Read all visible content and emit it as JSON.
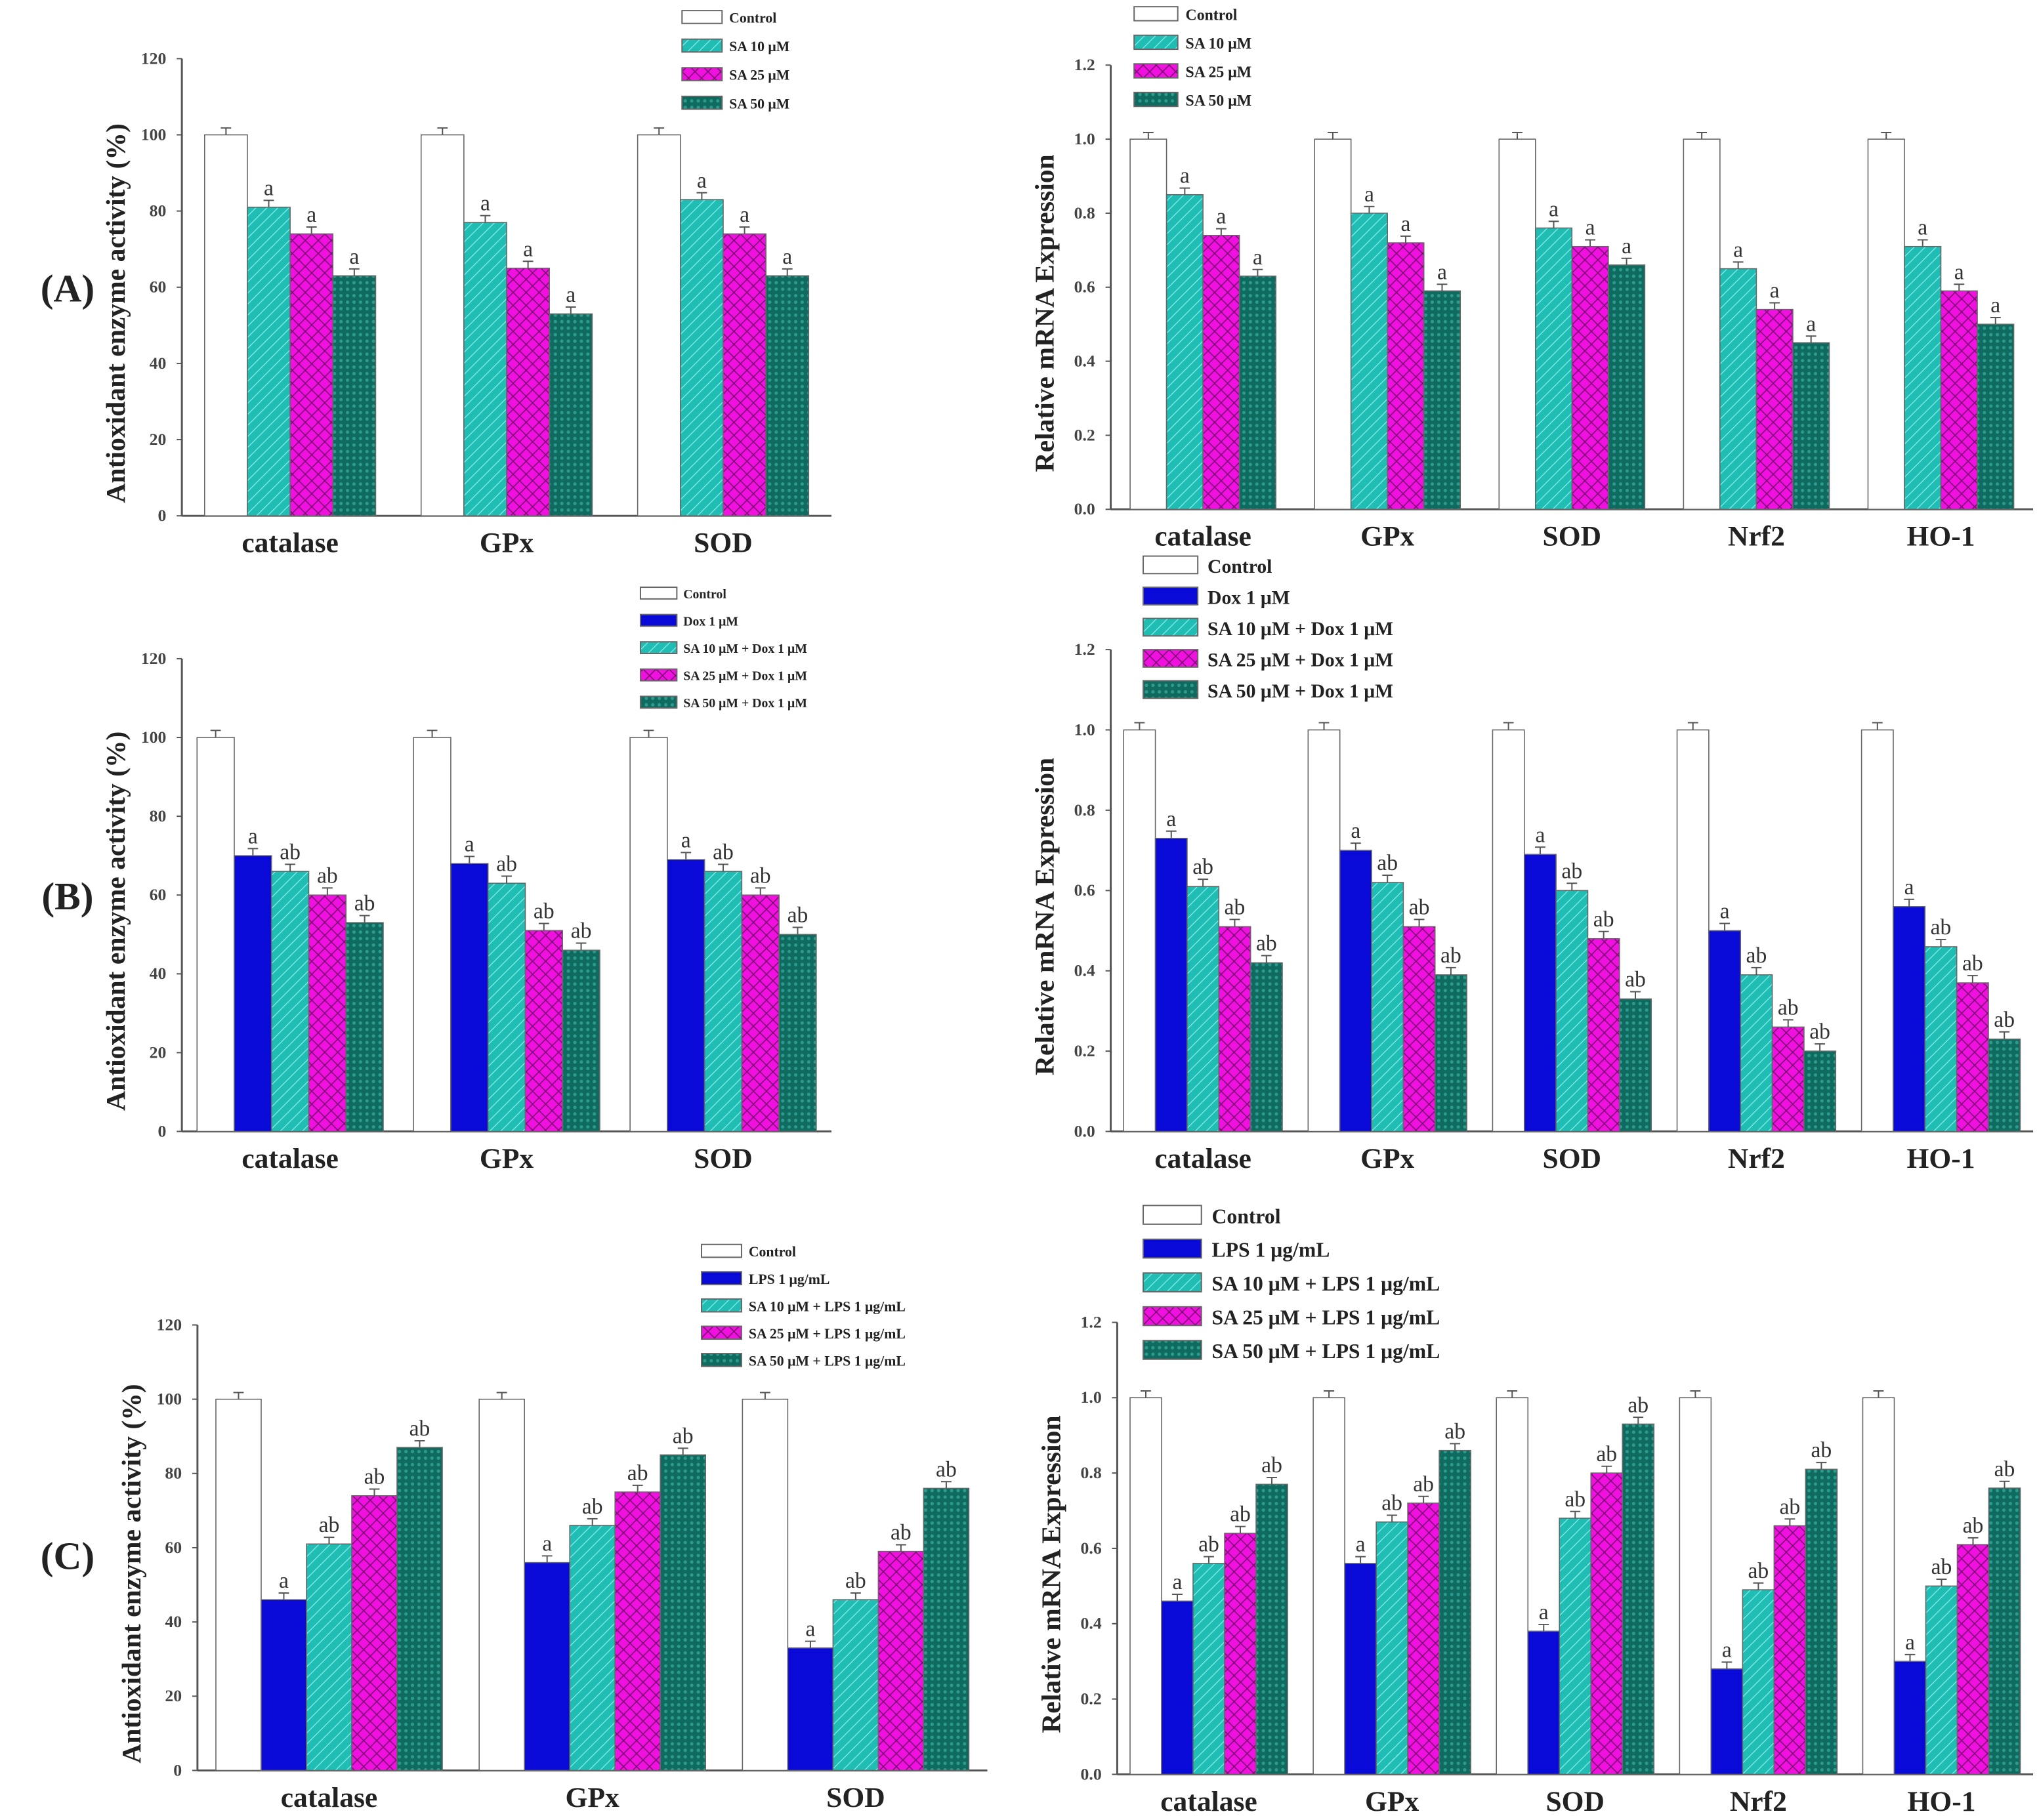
{
  "colors": {
    "control": "#ffffff",
    "dox_lps": "#0a0ad8",
    "sa10": "#1fbdb4",
    "sa25": "#f010e0",
    "sa50": "#0f6b60",
    "axis": "#555555"
  },
  "chart_data": [
    {
      "id": "A-left",
      "panel_label": "(A)",
      "type": "bar",
      "ylabel": "Antioxidant enzyme activity (%)",
      "ylim": [
        0,
        120
      ],
      "yticks": [
        "0",
        "20",
        "40",
        "60",
        "80",
        "100",
        "120"
      ],
      "categories": [
        "catalase",
        "GPx",
        "SOD"
      ],
      "series": [
        {
          "name": "Control",
          "style": "control",
          "values": [
            100,
            100,
            100
          ],
          "sig": [
            "",
            "",
            ""
          ]
        },
        {
          "name": "SA 10 μM",
          "style": "sa10",
          "values": [
            81,
            77,
            83
          ],
          "sig": [
            "a",
            "a",
            "a"
          ]
        },
        {
          "name": "SA 25 μM",
          "style": "sa25",
          "values": [
            74,
            65,
            74
          ],
          "sig": [
            "a",
            "a",
            "a"
          ]
        },
        {
          "name": "SA 50 μM",
          "style": "sa50",
          "values": [
            63,
            53,
            63
          ],
          "sig": [
            "a",
            "a",
            "a"
          ]
        }
      ]
    },
    {
      "id": "A-right",
      "type": "bar",
      "ylabel": "Relative mRNA Expression",
      "ylim": [
        0,
        1.2
      ],
      "yticks": [
        "0.0",
        "0.2",
        "0.4",
        "0.6",
        "0.8",
        "1.0",
        "1.2"
      ],
      "categories": [
        "catalase",
        "GPx",
        "SOD",
        "Nrf2",
        "HO-1"
      ],
      "series": [
        {
          "name": "Control",
          "style": "control",
          "values": [
            1,
            1,
            1,
            1,
            1
          ],
          "sig": [
            "",
            "",
            "",
            "",
            ""
          ]
        },
        {
          "name": "SA 10 μM",
          "style": "sa10",
          "values": [
            0.85,
            0.8,
            0.76,
            0.65,
            0.71
          ],
          "sig": [
            "a",
            "a",
            "a",
            "a",
            "a"
          ]
        },
        {
          "name": "SA 25 μM",
          "style": "sa25",
          "values": [
            0.74,
            0.72,
            0.71,
            0.54,
            0.59
          ],
          "sig": [
            "a",
            "a",
            "a",
            "a",
            "a"
          ]
        },
        {
          "name": "SA 50 μM",
          "style": "sa50",
          "values": [
            0.63,
            0.59,
            0.66,
            0.45,
            0.5
          ],
          "sig": [
            "a",
            "a",
            "a",
            "a",
            "a"
          ]
        }
      ]
    },
    {
      "id": "B-left",
      "panel_label": "(B)",
      "type": "bar",
      "ylabel": "Antioxidant enzyme activity (%)",
      "ylim": [
        0,
        120
      ],
      "yticks": [
        "0",
        "20",
        "40",
        "60",
        "80",
        "100",
        "120"
      ],
      "categories": [
        "catalase",
        "GPx",
        "SOD"
      ],
      "series": [
        {
          "name": "Control",
          "style": "control",
          "values": [
            100,
            100,
            100
          ],
          "sig": [
            "",
            "",
            ""
          ]
        },
        {
          "name": "Dox 1 μM",
          "style": "dox_lps",
          "values": [
            70,
            68,
            69
          ],
          "sig": [
            "a",
            "a",
            "a"
          ]
        },
        {
          "name": "SA 10 μM + Dox 1 μM",
          "style": "sa10",
          "values": [
            66,
            63,
            66
          ],
          "sig": [
            "ab",
            "ab",
            "ab"
          ]
        },
        {
          "name": "SA 25 μM + Dox 1 μM",
          "style": "sa25",
          "values": [
            60,
            51,
            60
          ],
          "sig": [
            "ab",
            "ab",
            "ab"
          ]
        },
        {
          "name": "SA 50 μM + Dox 1 μM",
          "style": "sa50",
          "values": [
            53,
            46,
            50
          ],
          "sig": [
            "ab",
            "ab",
            "ab"
          ]
        }
      ]
    },
    {
      "id": "B-right",
      "type": "bar",
      "ylabel": "Relative mRNA Expression",
      "ylim": [
        0,
        1.2
      ],
      "yticks": [
        "0.0",
        "0.2",
        "0.4",
        "0.6",
        "0.8",
        "1.0",
        "1.2"
      ],
      "categories": [
        "catalase",
        "GPx",
        "SOD",
        "Nrf2",
        "HO-1"
      ],
      "series": [
        {
          "name": "Control",
          "style": "control",
          "values": [
            1,
            1,
            1,
            1,
            1
          ],
          "sig": [
            "",
            "",
            "",
            "",
            ""
          ]
        },
        {
          "name": "Dox 1 μM",
          "style": "dox_lps",
          "values": [
            0.73,
            0.7,
            0.69,
            0.5,
            0.56
          ],
          "sig": [
            "a",
            "a",
            "a",
            "a",
            "a"
          ]
        },
        {
          "name": "SA 10 μM + Dox 1 μM",
          "style": "sa10",
          "values": [
            0.61,
            0.62,
            0.6,
            0.39,
            0.46
          ],
          "sig": [
            "ab",
            "ab",
            "ab",
            "ab",
            "ab"
          ]
        },
        {
          "name": "SA 25 μM + Dox 1 μM",
          "style": "sa25",
          "values": [
            0.51,
            0.51,
            0.48,
            0.26,
            0.37
          ],
          "sig": [
            "ab",
            "ab",
            "ab",
            "ab",
            "ab"
          ]
        },
        {
          "name": "SA 50 μM + Dox 1 μM",
          "style": "sa50",
          "values": [
            0.42,
            0.39,
            0.33,
            0.2,
            0.23
          ],
          "sig": [
            "ab",
            "ab",
            "ab",
            "ab",
            "ab"
          ]
        }
      ]
    },
    {
      "id": "C-left",
      "panel_label": "(C)",
      "type": "bar",
      "ylabel": "Antioxidant enzyme activity (%)",
      "ylim": [
        0,
        120
      ],
      "yticks": [
        "0",
        "20",
        "40",
        "60",
        "80",
        "100",
        "120"
      ],
      "categories": [
        "catalase",
        "GPx",
        "SOD"
      ],
      "series": [
        {
          "name": "Control",
          "style": "control",
          "values": [
            100,
            100,
            100
          ],
          "sig": [
            "",
            "",
            ""
          ]
        },
        {
          "name": "LPS 1 μg/mL",
          "style": "dox_lps",
          "values": [
            46,
            56,
            33
          ],
          "sig": [
            "a",
            "a",
            "a"
          ]
        },
        {
          "name": "SA 10 μM + LPS 1 μg/mL",
          "style": "sa10",
          "values": [
            61,
            66,
            46
          ],
          "sig": [
            "ab",
            "ab",
            "ab"
          ]
        },
        {
          "name": "SA 25 μM + LPS 1 μg/mL",
          "style": "sa25",
          "values": [
            74,
            75,
            59
          ],
          "sig": [
            "ab",
            "ab",
            "ab"
          ]
        },
        {
          "name": "SA 50 μM + LPS 1 μg/mL",
          "style": "sa50",
          "values": [
            87,
            85,
            76
          ],
          "sig": [
            "ab",
            "ab",
            "ab"
          ]
        }
      ]
    },
    {
      "id": "C-right",
      "type": "bar",
      "ylabel": "Relative mRNA Expression",
      "ylim": [
        0,
        1.2
      ],
      "yticks": [
        "0.0",
        "0.2",
        "0.4",
        "0.6",
        "0.8",
        "1.0",
        "1.2"
      ],
      "categories": [
        "catalase",
        "GPx",
        "SOD",
        "Nrf2",
        "HO-1"
      ],
      "series": [
        {
          "name": "Control",
          "style": "control",
          "values": [
            1,
            1,
            1,
            1,
            1
          ],
          "sig": [
            "",
            "",
            "",
            "",
            ""
          ]
        },
        {
          "name": "LPS 1 μg/mL",
          "style": "dox_lps",
          "values": [
            0.46,
            0.56,
            0.38,
            0.28,
            0.3
          ],
          "sig": [
            "a",
            "a",
            "a",
            "a",
            "a"
          ]
        },
        {
          "name": "SA 10 μM + LPS 1 μg/mL",
          "style": "sa10",
          "values": [
            0.56,
            0.67,
            0.68,
            0.49,
            0.5
          ],
          "sig": [
            "ab",
            "ab",
            "ab",
            "ab",
            "ab"
          ]
        },
        {
          "name": "SA 25 μM + LPS 1 μg/mL",
          "style": "sa25",
          "values": [
            0.64,
            0.72,
            0.8,
            0.66,
            0.61
          ],
          "sig": [
            "ab",
            "ab",
            "ab",
            "ab",
            "ab"
          ]
        },
        {
          "name": "SA 50 μM + LPS 1 μg/mL",
          "style": "sa50",
          "values": [
            0.77,
            0.86,
            0.93,
            0.81,
            0.76
          ],
          "sig": [
            "ab",
            "ab",
            "ab",
            "ab",
            "ab"
          ]
        }
      ]
    }
  ]
}
